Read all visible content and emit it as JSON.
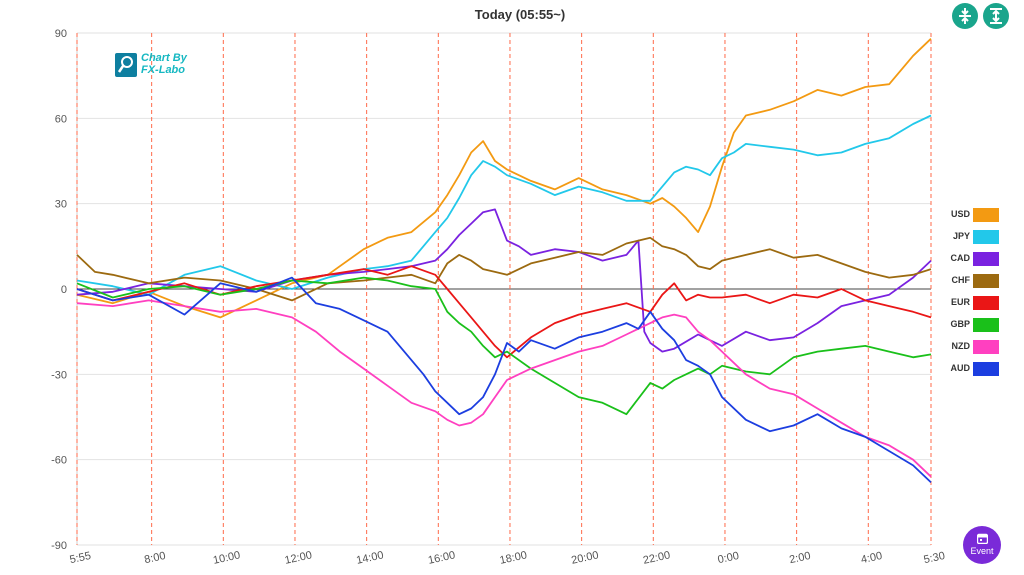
{
  "title": "Today  (05:55~)",
  "logo_text": [
    "Chart By",
    "FX-Labo"
  ],
  "event_label": "Event",
  "chart_data": {
    "type": "line",
    "title": "Today  (05:55~)",
    "xlabel": "",
    "ylabel": "",
    "ylim": [
      -90,
      90
    ],
    "yticks": [
      -90,
      -60,
      -30,
      0,
      30,
      60,
      90
    ],
    "xlim": [
      0,
      143
    ],
    "xticks": [
      {
        "label": "5:55",
        "x": 0
      },
      {
        "label": "8:00",
        "x": 12.5
      },
      {
        "label": "10:00",
        "x": 24.5
      },
      {
        "label": "12:00",
        "x": 36.5
      },
      {
        "label": "14:00",
        "x": 48.5
      },
      {
        "label": "16:00",
        "x": 60.5
      },
      {
        "label": "18:00",
        "x": 72.5
      },
      {
        "label": "20:00",
        "x": 84.5
      },
      {
        "label": "22:00",
        "x": 96.5
      },
      {
        "label": "0:00",
        "x": 108.5
      },
      {
        "label": "2:00",
        "x": 120.5
      },
      {
        "label": "4:00",
        "x": 132.5
      },
      {
        "label": "5:30",
        "x": 143
      }
    ],
    "grid": true,
    "legend_position": "right",
    "series": [
      {
        "name": "USD",
        "color": "#f39a12",
        "x": [
          0,
          6,
          12,
          18,
          24,
          30,
          36,
          42,
          48,
          52,
          56,
          60,
          62,
          64,
          66,
          68,
          70,
          72,
          76,
          80,
          84,
          88,
          92,
          96,
          98,
          100,
          102,
          104,
          106,
          108,
          110,
          112,
          116,
          120,
          124,
          128,
          132,
          136,
          140,
          143
        ],
        "values": [
          -2,
          -5,
          -1,
          -6,
          -10,
          -4,
          2,
          5,
          14,
          18,
          20,
          27,
          33,
          40,
          48,
          52,
          45,
          42,
          38,
          35,
          39,
          35,
          33,
          30,
          32,
          29,
          25,
          20,
          29,
          43,
          55,
          61,
          63,
          66,
          70,
          68,
          71,
          72,
          82,
          88
        ]
      },
      {
        "name": "JPY",
        "color": "#22c8ea",
        "x": [
          0,
          6,
          12,
          18,
          24,
          30,
          36,
          42,
          48,
          52,
          56,
          60,
          62,
          64,
          66,
          68,
          70,
          72,
          76,
          80,
          84,
          88,
          92,
          96,
          98,
          100,
          102,
          104,
          106,
          108,
          110,
          112,
          116,
          120,
          124,
          128,
          132,
          136,
          140,
          143
        ],
        "values": [
          3,
          1,
          -2,
          5,
          8,
          3,
          0,
          4,
          7,
          8,
          10,
          20,
          25,
          32,
          40,
          45,
          43,
          40,
          37,
          33,
          36,
          34,
          31,
          31,
          36,
          41,
          43,
          42,
          40,
          46,
          48,
          51,
          50,
          49,
          47,
          48,
          51,
          53,
          58,
          61
        ]
      },
      {
        "name": "CAD",
        "color": "#7a22e0",
        "x": [
          0,
          6,
          12,
          18,
          24,
          30,
          36,
          42,
          48,
          52,
          56,
          60,
          62,
          64,
          66,
          68,
          70,
          72,
          74,
          76,
          80,
          84,
          88,
          92,
          94,
          95,
          96,
          98,
          100,
          104,
          108,
          112,
          116,
          120,
          124,
          128,
          132,
          136,
          140,
          143
        ],
        "values": [
          -2,
          -1,
          2,
          1,
          0,
          -1,
          3,
          5,
          6,
          7,
          8,
          10,
          14,
          19,
          23,
          27,
          28,
          17,
          15,
          12,
          14,
          13,
          10,
          12,
          17,
          -15,
          -19,
          -22,
          -21,
          -16,
          -20,
          -15,
          -18,
          -17,
          -12,
          -6,
          -4,
          -2,
          4,
          10
        ]
      },
      {
        "name": "CHF",
        "color": "#9c6a10",
        "x": [
          0,
          3,
          6,
          12,
          18,
          24,
          30,
          36,
          42,
          48,
          52,
          56,
          60,
          62,
          64,
          66,
          68,
          70,
          72,
          76,
          80,
          84,
          88,
          92,
          96,
          98,
          100,
          102,
          104,
          106,
          108,
          112,
          116,
          120,
          124,
          128,
          132,
          136,
          140,
          143
        ],
        "values": [
          12,
          6,
          5,
          2,
          4,
          3,
          0,
          -4,
          2,
          3,
          4,
          5,
          2,
          9,
          12,
          10,
          7,
          6,
          5,
          9,
          11,
          13,
          12,
          16,
          18,
          15,
          14,
          12,
          8,
          7,
          10,
          12,
          14,
          11,
          12,
          9,
          6,
          4,
          5,
          7
        ]
      },
      {
        "name": "EUR",
        "color": "#ea1616",
        "x": [
          0,
          6,
          12,
          18,
          24,
          30,
          36,
          42,
          48,
          52,
          56,
          60,
          62,
          64,
          66,
          68,
          70,
          72,
          76,
          80,
          84,
          88,
          92,
          96,
          98,
          100,
          102,
          104,
          106,
          108,
          112,
          116,
          120,
          124,
          128,
          132,
          136,
          140,
          143
        ],
        "values": [
          0,
          -4,
          -1,
          2,
          -2,
          1,
          3,
          5,
          7,
          5,
          8,
          5,
          0,
          -5,
          -10,
          -15,
          -20,
          -24,
          -17,
          -12,
          -9,
          -7,
          -5,
          -8,
          -2,
          2,
          -4,
          -2,
          -3,
          -3,
          -2,
          -5,
          -2,
          -3,
          0,
          -4,
          -6,
          -8,
          -10
        ]
      },
      {
        "name": "GBP",
        "color": "#1ac01a",
        "x": [
          0,
          6,
          12,
          18,
          24,
          30,
          36,
          42,
          48,
          52,
          56,
          60,
          62,
          64,
          66,
          68,
          70,
          72,
          76,
          80,
          84,
          88,
          92,
          96,
          98,
          100,
          102,
          104,
          106,
          108,
          112,
          116,
          120,
          124,
          128,
          132,
          136,
          140,
          143
        ],
        "values": [
          2,
          -3,
          0,
          1,
          -2,
          0,
          3,
          2,
          4,
          3,
          1,
          0,
          -8,
          -12,
          -15,
          -20,
          -24,
          -22,
          -28,
          -33,
          -38,
          -40,
          -44,
          -33,
          -35,
          -32,
          -30,
          -28,
          -30,
          -27,
          -29,
          -30,
          -24,
          -22,
          -21,
          -20,
          -22,
          -24,
          -23
        ]
      },
      {
        "name": "NZD",
        "color": "#ff40c0",
        "x": [
          0,
          6,
          12,
          18,
          24,
          30,
          36,
          40,
          44,
          48,
          52,
          56,
          60,
          62,
          64,
          66,
          68,
          70,
          72,
          76,
          80,
          84,
          88,
          92,
          96,
          98,
          100,
          102,
          104,
          106,
          108,
          112,
          116,
          120,
          124,
          128,
          132,
          136,
          140,
          143
        ],
        "values": [
          -5,
          -6,
          -4,
          -6,
          -8,
          -7,
          -10,
          -15,
          -22,
          -28,
          -34,
          -40,
          -43,
          -46,
          -48,
          -47,
          -44,
          -38,
          -32,
          -28,
          -25,
          -22,
          -20,
          -16,
          -12,
          -10,
          -9,
          -10,
          -15,
          -18,
          -22,
          -30,
          -35,
          -37,
          -42,
          -47,
          -52,
          -55,
          -60,
          -66
        ]
      },
      {
        "name": "AUD",
        "color": "#1c3ee0",
        "x": [
          0,
          6,
          12,
          18,
          24,
          30,
          36,
          40,
          44,
          48,
          52,
          56,
          58,
          60,
          62,
          64,
          66,
          68,
          70,
          72,
          74,
          76,
          80,
          84,
          88,
          92,
          94,
          96,
          98,
          100,
          102,
          104,
          106,
          108,
          112,
          116,
          120,
          124,
          128,
          132,
          136,
          140,
          143
        ],
        "values": [
          0,
          -4,
          -2,
          -9,
          2,
          -1,
          4,
          -5,
          -7,
          -11,
          -15,
          -25,
          -30,
          -36,
          -40,
          -44,
          -42,
          -38,
          -30,
          -19,
          -22,
          -18,
          -21,
          -17,
          -15,
          -12,
          -14,
          -8,
          -14,
          -18,
          -25,
          -27,
          -30,
          -38,
          -46,
          -50,
          -48,
          -44,
          -49,
          -52,
          -57,
          -62,
          -68
        ]
      }
    ]
  }
}
